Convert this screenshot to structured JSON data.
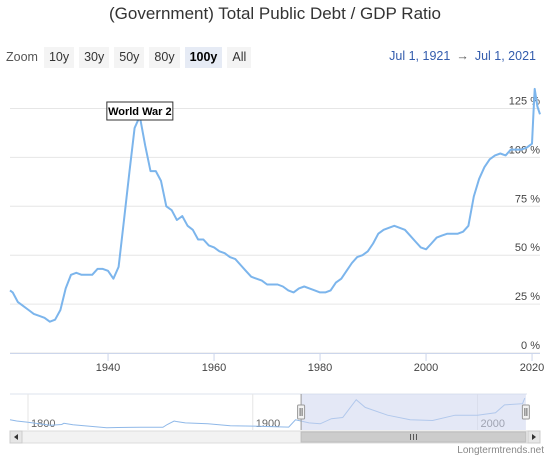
{
  "header": {
    "title": "(Government) Total Public Debt / GDP Ratio"
  },
  "zoom": {
    "label": "Zoom",
    "buttons": [
      "10y",
      "30y",
      "50y",
      "80y",
      "100y",
      "All"
    ],
    "active": "100y"
  },
  "range": {
    "from": "Jul 1, 1921",
    "arrow": "→",
    "to": "Jul 1, 2021"
  },
  "credit": "Longtermtrends.net",
  "colors": {
    "line": "#7cb5ec",
    "nav_fill": "#cdd6ef",
    "grid": "#e6e6e6"
  },
  "chart_data": {
    "type": "line",
    "title": "(Government) Total Public Debt / GDP Ratio",
    "xlabel": "",
    "ylabel": "",
    "xlim": [
      1921.5,
      2021.5
    ],
    "ylim": [
      0,
      137
    ],
    "x_ticks": [
      1940,
      1960,
      1980,
      2000,
      2020
    ],
    "y_ticks": [
      0,
      25,
      50,
      75,
      100,
      125
    ],
    "y_tick_labels": [
      "0 %",
      "25 %",
      "50 %",
      "75 %",
      "100 %",
      "125 %"
    ],
    "annotations": [
      {
        "text": "World War 2",
        "x": 1946,
        "y": 121
      }
    ],
    "series": [
      {
        "x": [
          1921.5,
          1922,
          1923,
          1924,
          1925,
          1926,
          1927,
          1928,
          1929,
          1930,
          1931,
          1932,
          1933,
          1934,
          1935,
          1936,
          1937,
          1938,
          1939,
          1940,
          1941,
          1942,
          1943,
          1944,
          1945,
          1946,
          1947,
          1948,
          1949,
          1950,
          1951,
          1952,
          1953,
          1954,
          1955,
          1956,
          1957,
          1958,
          1959,
          1960,
          1961,
          1962,
          1963,
          1964,
          1965,
          1966,
          1967,
          1968,
          1969,
          1970,
          1971,
          1972,
          1973,
          1974,
          1975,
          1976,
          1977,
          1978,
          1979,
          1980,
          1981,
          1982,
          1983,
          1984,
          1985,
          1986,
          1987,
          1988,
          1989,
          1990,
          1991,
          1992,
          1993,
          1994,
          1995,
          1996,
          1997,
          1998,
          1999,
          2000,
          2001,
          2002,
          2003,
          2004,
          2005,
          2006,
          2007,
          2008,
          2009,
          2010,
          2011,
          2012,
          2013,
          2014,
          2015,
          2016,
          2017,
          2018,
          2019,
          2020,
          2020.25,
          2020.5,
          2021,
          2021.5
        ],
        "y": [
          32,
          31,
          26,
          24,
          22,
          20,
          19,
          18,
          16,
          17,
          22,
          33,
          40,
          41,
          40,
          40,
          40,
          43,
          43,
          42,
          38,
          44,
          68,
          92,
          115,
          121,
          106,
          93,
          93,
          88,
          75,
          73,
          68,
          70,
          65,
          63,
          58,
          58,
          55,
          54,
          52,
          51,
          49,
          48,
          45,
          42,
          39,
          38,
          37,
          35,
          35,
          35,
          34,
          32,
          31,
          33,
          34,
          33,
          32,
          31,
          31,
          32,
          36,
          38,
          42,
          46,
          49,
          50,
          52,
          56,
          61,
          63,
          64,
          65,
          64,
          63,
          60,
          57,
          54,
          53,
          56,
          59,
          60,
          61,
          61,
          61,
          62,
          65,
          80,
          89,
          95,
          99,
          101,
          102,
          101,
          104,
          104,
          104,
          105,
          107,
          122,
          135,
          126,
          122
        ]
      }
    ],
    "navigator": {
      "x_ticks": [
        1800,
        1900,
        2000
      ],
      "x_range": [
        1792,
        2022
      ],
      "selected": [
        1921.5,
        2021.5
      ],
      "series": {
        "x": [
          1792,
          1795,
          1800,
          1805,
          1810,
          1815,
          1816,
          1820,
          1830,
          1835,
          1840,
          1850,
          1860,
          1862,
          1865,
          1866,
          1870,
          1880,
          1890,
          1900,
          1910,
          1916,
          1919,
          1925,
          1930,
          1935,
          1940,
          1946,
          1950,
          1960,
          1970,
          1980,
          1990,
          2000,
          2008,
          2012,
          2020,
          2021
        ],
        "y": [
          35,
          30,
          25,
          18,
          12,
          15,
          20,
          14,
          5,
          1,
          2,
          3,
          3,
          15,
          30,
          28,
          22,
          18,
          10,
          8,
          5,
          4,
          35,
          22,
          18,
          40,
          45,
          121,
          88,
          55,
          35,
          32,
          55,
          55,
          65,
          99,
          104,
          128
        ]
      }
    }
  }
}
